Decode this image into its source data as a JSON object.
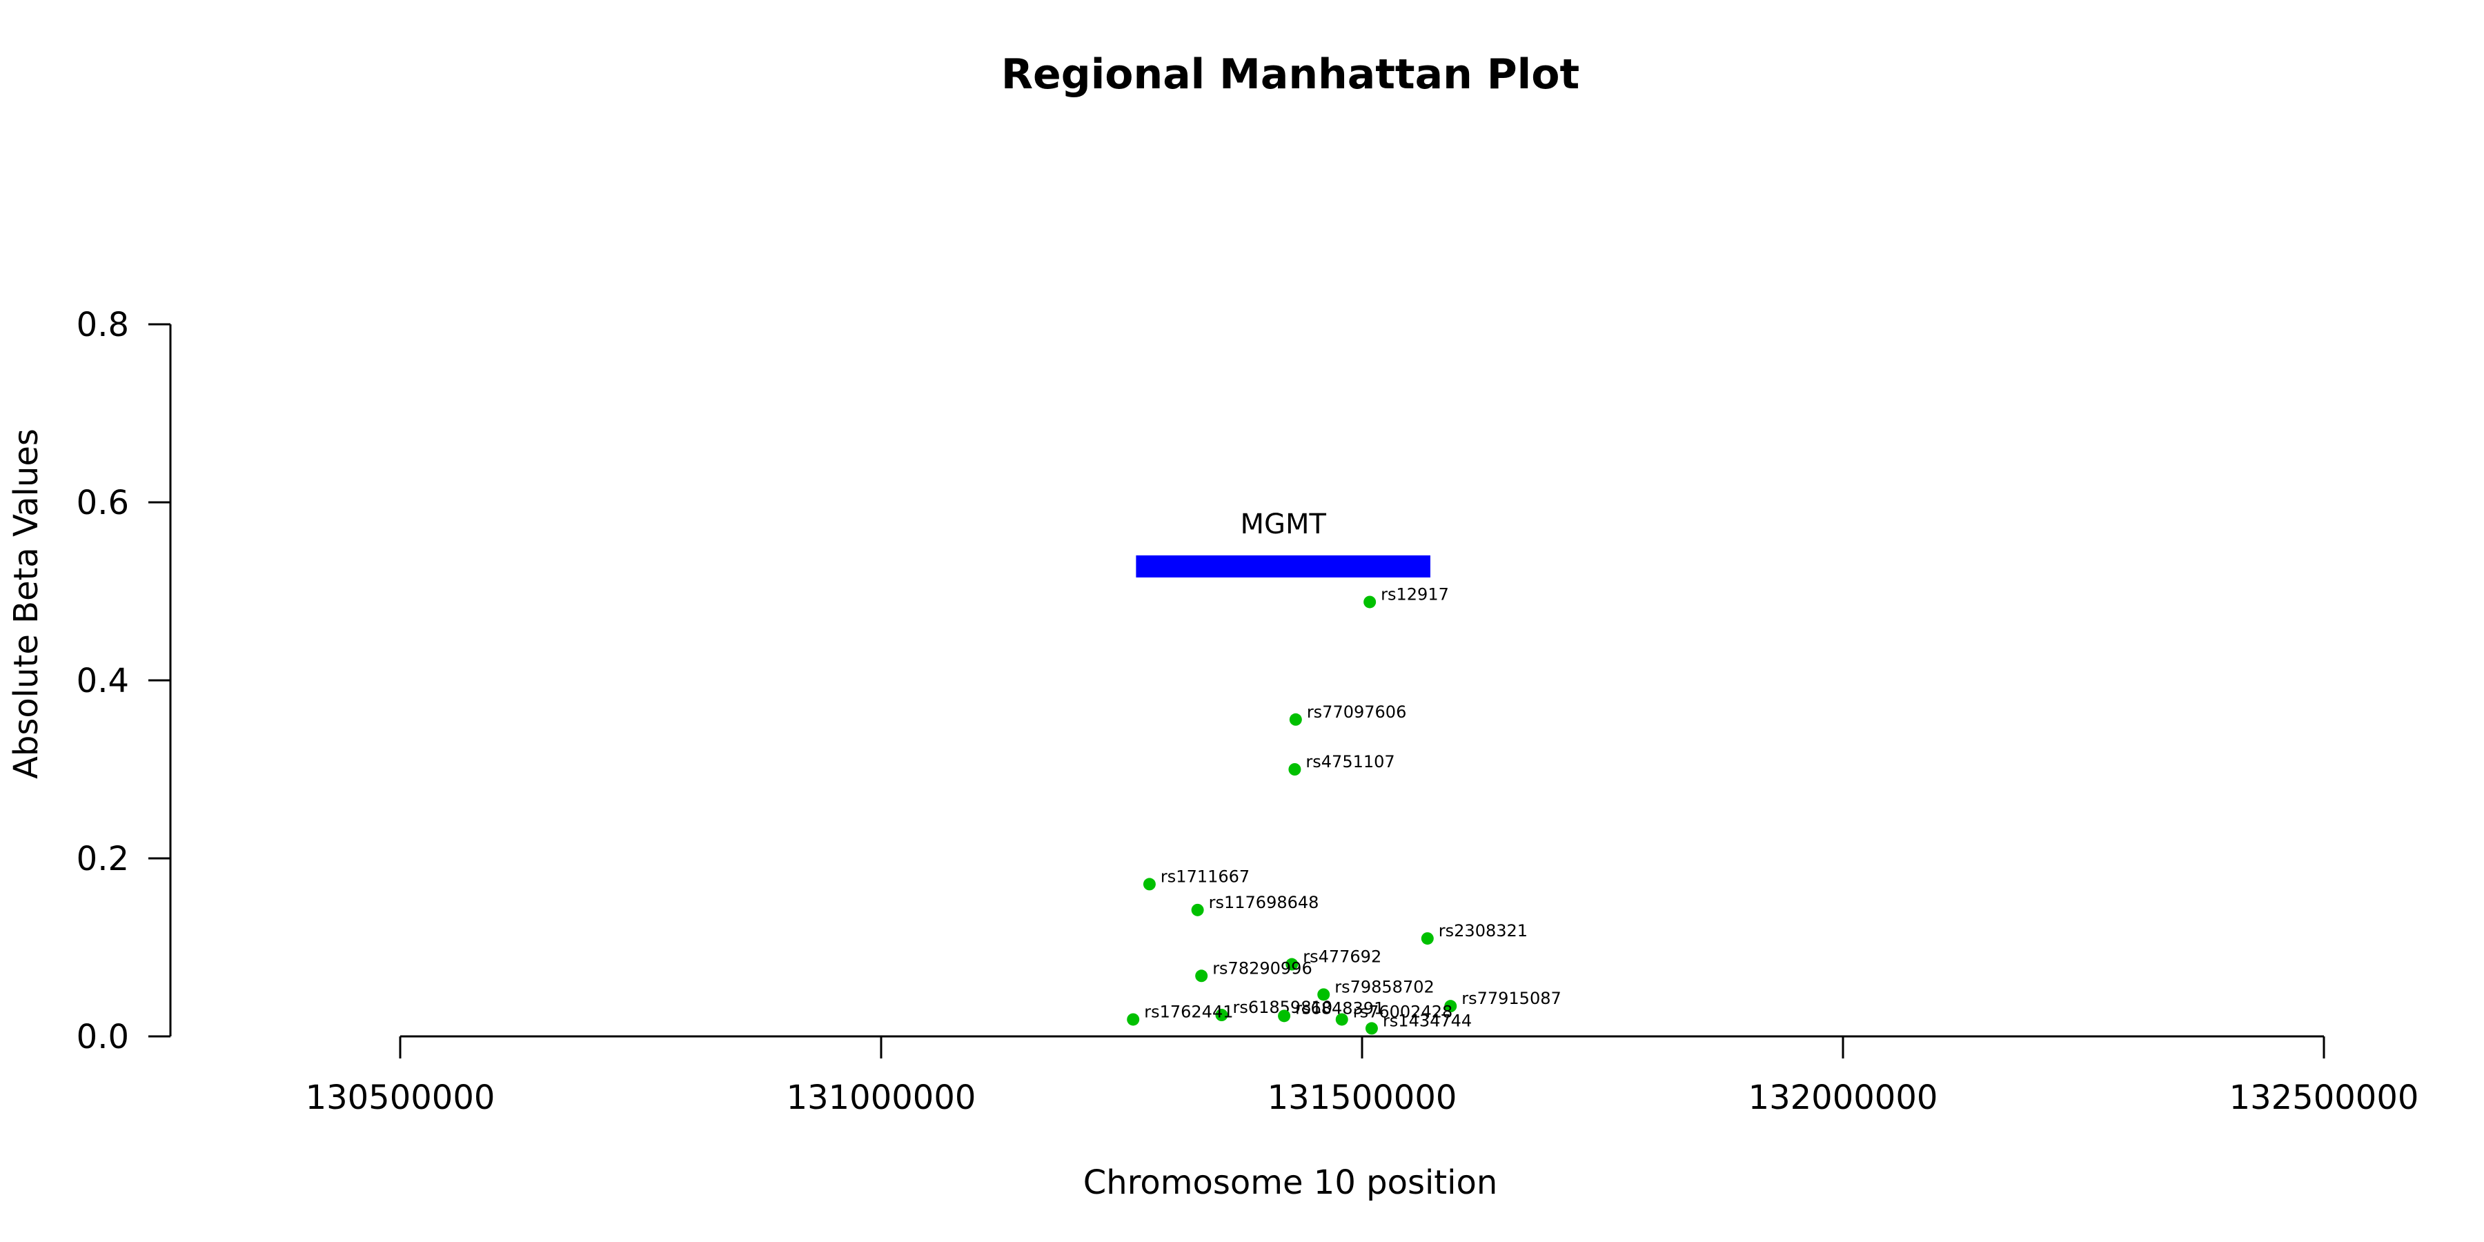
{
  "chart_data": {
    "type": "scatter",
    "title": "Regional Manhattan Plot",
    "xlabel": "Chromosome 10 position",
    "ylabel": "Absolute Beta Values",
    "xlim": [
      130500000,
      132500000
    ],
    "ylim": [
      0,
      0.8
    ],
    "x_ticks": [
      130500000,
      131000000,
      131500000,
      132000000,
      132500000
    ],
    "y_ticks": [
      0.0,
      0.2,
      0.4,
      0.6,
      0.8
    ],
    "x_tick_labels": [
      "130500000",
      "131000000",
      "131500000",
      "132000000",
      "132500000"
    ],
    "y_tick_labels": [
      "0.0",
      "0.2",
      "0.4",
      "0.6",
      "0.8"
    ],
    "grid": false,
    "point_color": "#00c000",
    "gene": {
      "name": "MGMT",
      "start": 131265000,
      "end": 131571000,
      "y": 0.528,
      "color": "#0000ff"
    },
    "points": [
      {
        "label": "rs12917",
        "x": 131508000,
        "y": 0.488
      },
      {
        "label": "rs77097606",
        "x": 131431000,
        "y": 0.356
      },
      {
        "label": "rs4751107",
        "x": 131430000,
        "y": 0.3
      },
      {
        "label": "rs1711667",
        "x": 131279000,
        "y": 0.171
      },
      {
        "label": "rs117698648",
        "x": 131329000,
        "y": 0.142
      },
      {
        "label": "rs2308321",
        "x": 131568000,
        "y": 0.11
      },
      {
        "label": "rs477692",
        "x": 131427000,
        "y": 0.081
      },
      {
        "label": "rs78290996",
        "x": 131333000,
        "y": 0.068
      },
      {
        "label": "rs79858702",
        "x": 131460000,
        "y": 0.047
      },
      {
        "label": "rs77915087",
        "x": 131592000,
        "y": 0.034
      },
      {
        "label": "rs61859810",
        "x": 131354000,
        "y": 0.024
      },
      {
        "label": "rs6848391",
        "x": 131419000,
        "y": 0.023
      },
      {
        "label": "rs76002428",
        "x": 131479000,
        "y": 0.019
      },
      {
        "label": "rs1762441",
        "x": 131262000,
        "y": 0.019
      },
      {
        "label": "rs1434744",
        "x": 131510000,
        "y": 0.009
      }
    ]
  }
}
